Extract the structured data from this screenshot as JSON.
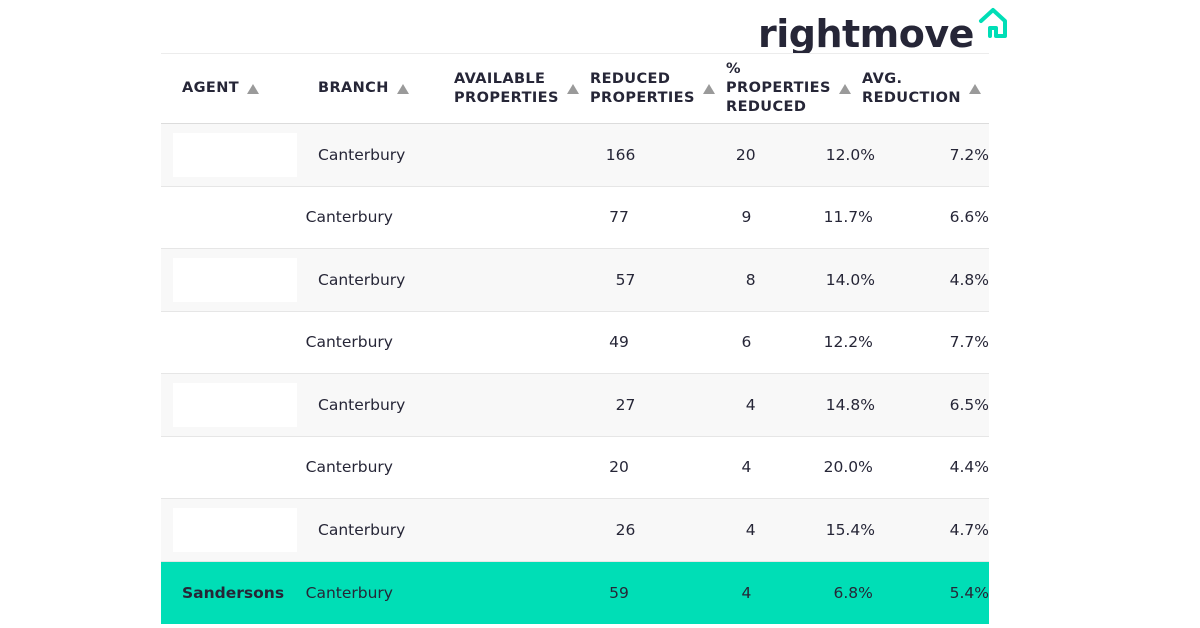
{
  "logo": {
    "text": "rightmove",
    "icon": "house-outline-icon",
    "text_color": "#262637",
    "icon_color": "#00deb6"
  },
  "table": {
    "columns": [
      {
        "key": "agent",
        "label": "AGENT"
      },
      {
        "key": "branch",
        "label": "BRANCH"
      },
      {
        "key": "available",
        "label": "AVAILABLE\nPROPERTIES"
      },
      {
        "key": "reduced",
        "label": "REDUCED\nPROPERTIES"
      },
      {
        "key": "pct",
        "label": "%\nPROPERTIES\nREDUCED"
      },
      {
        "key": "avg",
        "label": "AVG.\nREDUCTION"
      }
    ],
    "sort_icon": "sort-up-triangle-icon",
    "rows": [
      {
        "agent": "",
        "branch": "Canterbury",
        "available": "166",
        "reduced": "20",
        "pct": "12.0%",
        "avg": "7.2%"
      },
      {
        "agent": "",
        "branch": "Canterbury",
        "available": "77",
        "reduced": "9",
        "pct": "11.7%",
        "avg": "6.6%"
      },
      {
        "agent": "",
        "branch": "Canterbury",
        "available": "57",
        "reduced": "8",
        "pct": "14.0%",
        "avg": "4.8%"
      },
      {
        "agent": "",
        "branch": "Canterbury",
        "available": "49",
        "reduced": "6",
        "pct": "12.2%",
        "avg": "7.7%"
      },
      {
        "agent": "",
        "branch": "Canterbury",
        "available": "27",
        "reduced": "4",
        "pct": "14.8%",
        "avg": "6.5%"
      },
      {
        "agent": "",
        "branch": "Canterbury",
        "available": "20",
        "reduced": "4",
        "pct": "20.0%",
        "avg": "4.4%"
      },
      {
        "agent": "",
        "branch": "Canterbury",
        "available": "26",
        "reduced": "4",
        "pct": "15.4%",
        "avg": "4.7%"
      },
      {
        "agent": "Sandersons",
        "branch": "Canterbury",
        "available": "59",
        "reduced": "4",
        "pct": "6.8%",
        "avg": "5.4%"
      }
    ],
    "highlight_color": "#00deb6"
  }
}
